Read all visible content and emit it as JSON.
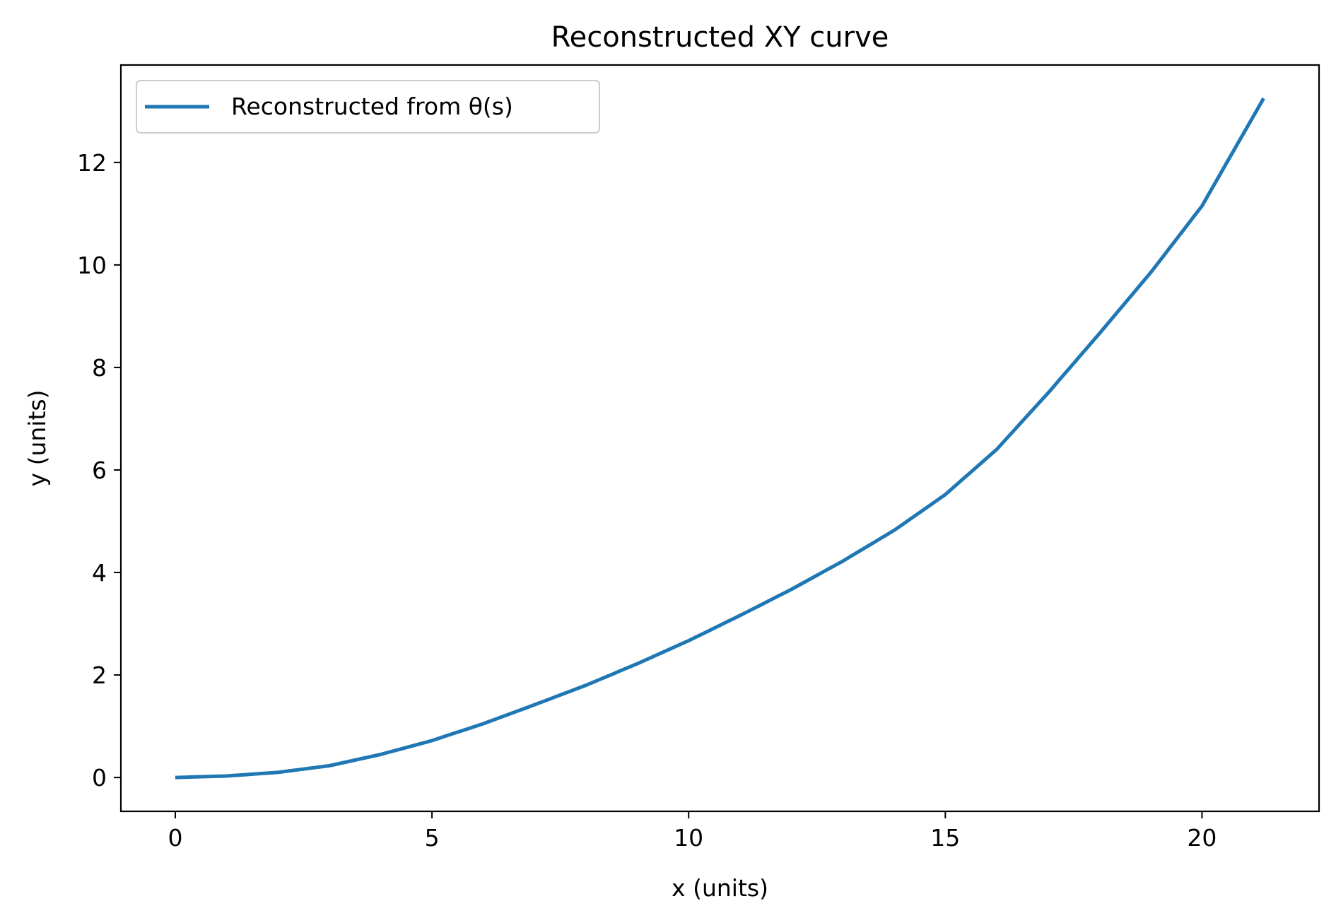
{
  "chart_data": {
    "type": "line",
    "title": "Reconstructed XY curve",
    "xlabel": "x (units)",
    "ylabel": "y (units)",
    "xlim": [
      -1.06,
      22.28
    ],
    "ylim": [
      -0.66,
      13.9
    ],
    "xticks": [
      0,
      5,
      10,
      15,
      20
    ],
    "yticks": [
      0,
      2,
      4,
      6,
      8,
      10,
      12
    ],
    "grid": false,
    "legend_position": "upper left",
    "series": [
      {
        "name": "Reconstructed from θ(s)",
        "color": "#1f77b4",
        "x": [
          0,
          1,
          2,
          3,
          4,
          5,
          6,
          7,
          8,
          9,
          10,
          11,
          12,
          13,
          14,
          15,
          16,
          17,
          18,
          19,
          20,
          21.2
        ],
        "y": [
          0,
          0.03,
          0.1,
          0.23,
          0.45,
          0.72,
          1.05,
          1.42,
          1.8,
          2.22,
          2.67,
          3.16,
          3.67,
          4.22,
          4.82,
          5.52,
          6.4,
          7.5,
          8.66,
          9.85,
          11.15,
          13.25
        ]
      }
    ]
  }
}
